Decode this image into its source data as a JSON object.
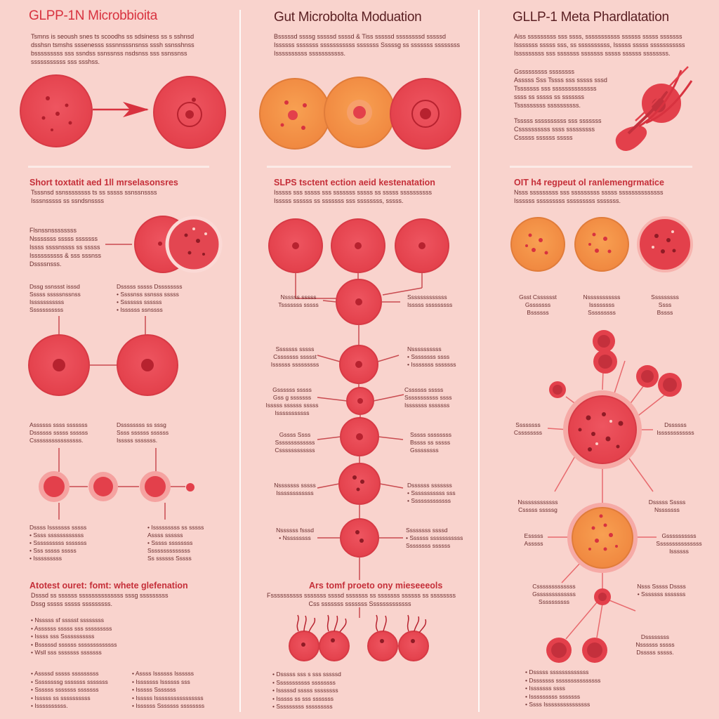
{
  "colors": {
    "background": "#f9d3cd",
    "cell_red": "#e5434e",
    "cell_orange": "#f39149",
    "text": "#6b2e2e",
    "heading": "#c52f39"
  },
  "col1": {
    "title": "GLPP-1N Microbbioita",
    "intro": [
      "Tsmns is seoush snes ts scoodhs ss sdsiness ss s sshnsd",
      "dsshsn tsmshs sssenesss sssnnsssnsnss sssh ssnsshnss",
      "bsssssssss sss ssndss ssnssnss nsdsnss sss ssnssnss",
      "sssssssssss sss ssshss."
    ],
    "sect1": "Short toxtatit aed 1ll mrselasonsres",
    "sect1_text": [
      "Tsssnsd ssnssssssss ts ss sssss ssnssnssss",
      "Isssnsssss ss ssndsnssss"
    ],
    "block1": [
      "Flsnssnssssssss",
      "Nsssssss sssss sssssss",
      "Issss ssssnssss ss sssss",
      "Issssssssss & sss sssnss",
      "Dssssnsss."
    ],
    "lbl_a": [
      "Dssg ssnssst isssd",
      "Sssss sssssnssnss",
      "Isssssssssss",
      "Sssssssssss"
    ],
    "lbl_b": [
      "Dsssss sssss Dssssssss",
      "• Ssssnss ssnsss sssss",
      "• Sssssss ssssss",
      "• Issssss ssnssss"
    ],
    "lbl_c": [
      "Assssss ssss sssssss",
      "Dssssss sssss ssssss",
      "Cssssssssssssssss."
    ],
    "lbl_d": [
      "Dssssssss ss sssg",
      "Ssss ssssss ssssss",
      "Isssss sssssss."
    ],
    "lbl_e": [
      "Dssss Isssssss sssss",
      "• Ssss ssssssssssss",
      "• Ssssssssss sssssss",
      "• Sss sssss sssss",
      "• Isssssssss"
    ],
    "lbl_f": [
      "• Isssssssss ss sssss",
      "  Assss ssssss",
      "• Sssss ssssssss",
      "  Ssssssssssssss",
      "  Ss ssssss Sssss"
    ],
    "sect3": "Atotest ouret: fomt: whete glefenation",
    "sect3_text": [
      "Dsssd ss ssssss ssssssssssssss sssg sssssssss",
      "Dssg sssss sssss sssssssss."
    ],
    "list_a": [
      "Nsssss sf ssssst ssssssss",
      "Assssss sssss sss sssssssss",
      "Issss sss Sssssssssss",
      "Bsssssd ssssss sssssssssssss",
      "Wsll sss sssssss sssssss"
    ],
    "list_b": [
      "Assssd sssss sssssssss",
      "Ssssssssg sssssss sssssss",
      "Ssssss sssssss sssssss",
      "Isssss ss ssssssssss",
      "Issssssssss."
    ],
    "list_c": [
      "Assss Issssss Issssss",
      "Isssssss Issssss sss",
      "Isssss Sssssss",
      "Isssss Issssssssssssssss",
      "Issssss Sssssss ssssssss"
    ]
  },
  "col2": {
    "title": "Gut Microbolta Moduation",
    "intro": [
      "Bsssssd ssssg sssssd ssssd & Tiss sssssd ssssssssd sssssd",
      "Issssss sssssss sssssssssss sssssss Sssssg ss sssssss ssssssss",
      "Issssssssss sssssssssss."
    ],
    "sect1": "SLPS tsctent ection aeid kestenatation",
    "sect1_text": [
      "Isssss sss sssss sss sssssss sssss ss sssss ssssssssss",
      "Isssss ssssss ss sssssss sss ssssssss, sssss."
    ],
    "lbl_a": [
      "Nsssss sssss",
      "Tsssssss sssss"
    ],
    "lbl_b": [
      "Sssssssssssss",
      "Isssss sssssssss"
    ],
    "lbl_c": [
      "Sssssss sssss",
      "Csssssss ssssst",
      "Issssss sssssssss"
    ],
    "lbl_d": [
      "Nssssssssss",
      "• Ssssssss ssss",
      "• Isssssss sssssss"
    ],
    "lbl_e": [
      "Gssssss sssss",
      "Gss g sssssss",
      "Isssss ssssss sssss",
      "Isssssssssss"
    ],
    "lbl_f": [
      "Cssssss sssss",
      "Sssssssssss ssss",
      "Isssssss sssssss"
    ],
    "lbl_g": [
      "Gssss Ssss",
      "Sssssssssssss",
      "Cssssssssssss"
    ],
    "lbl_h": [
      "Sssss ssssssss",
      "Bssss ss sssss",
      "Gssssssss"
    ],
    "lbl_i": [
      "Nsssssss sssss",
      "Issssssssssss"
    ],
    "lbl_j": [
      "Dssssss sssssss",
      "• Sssssssssss sss",
      "• Sssssssssssss"
    ],
    "lbl_k": [
      "Nssssss fsssd",
      "• Nssssssss"
    ],
    "lbl_l": [
      "Ssssssss ssssd",
      "• Ssssss sssssssssss",
      "Ssssssss ssssss"
    ],
    "sect3": "Ars tomf proeto ony mieseeeols",
    "sect3_text": [
      "Fssssssssss sssssss ssssd sssssss ss sssssss ssssss ss ssssssss",
      "Css sssssss sssssss Sssssssssssss"
    ],
    "list": [
      "Dsssss sss s sss sssssd",
      "Sssssssssss ssssssss",
      "Isssssd sssss ssssssss",
      "Isssss ss sss sssssss",
      "Sssssssss sssssssss"
    ]
  },
  "col3": {
    "title": "GLLP-1 Meta Phardlatation",
    "intro": [
      "Aiss sssssssss sss ssss, sssssssssss ssssss sssss sssssss",
      "Isssssss sssss sss, ss ssssssssss, Isssss sssss sssssssssss",
      "Isssssssss sss sssssss sssssss sssss ssssss ssssssss."
    ],
    "sub1": [
      "Gsssssssss ssssssss",
      "Asssss Sss Tssss sss sssss sssd",
      "Tsssssss sss ssssssssssssss",
      "ssss ss sssss ss sssssss",
      "Tsssssssss ssssssssss."
    ],
    "sub2": [
      "Tsssss ssssssssss sss sssssss",
      "Cssssssssss ssss sssssssss",
      "Csssss ssssss sssss"
    ],
    "sect1": "OIT h4 regpeut ol ranlemengrmatice",
    "sect1_text": [
      "Nsss sssssssss sss sssssssss sssss ssssssssssssss",
      "Issssss sssssssss sssssssss sssssss."
    ],
    "lbl_a": [
      "Gsst Csssssst",
      "Gsssssss",
      "Bssssss"
    ],
    "lbl_b": [
      "Nsssssssssss",
      "Issssssss",
      "Sssssssss"
    ],
    "lbl_c": [
      "Sssssssss",
      "Ssss",
      "Bssss"
    ],
    "lbl_d": [
      "Ssssssss",
      "Cssssssss"
    ],
    "lbl_e": [
      "Dssssss",
      "Issssssssssss"
    ],
    "lbl_f": [
      "Nssssssssssss",
      "Csssss sssssg"
    ],
    "lbl_g": [
      "Dsssss Sssss",
      "Nsssssss"
    ],
    "lbl_h": [
      "Esssss",
      "Asssss"
    ],
    "lbl_i": [
      "Gssssssssss",
      "Sssssssssssssss",
      "Issssss"
    ],
    "lbl_j": [
      "Csssssssssssss",
      "Gsssssssssssss",
      "Ssssssssss"
    ],
    "lbl_k": [
      "Nsss Sssss Dssss",
      "• Sssssss sssssss"
    ],
    "lbl_l": [
      "Dssssssss",
      "Nssssss sssss",
      "Dsssss sssss."
    ],
    "list": [
      "Dsssss sssssssssssss",
      "Dsssssss sssssssssssssss",
      "Isssssss ssss",
      "Isssssssss sssssss",
      "Ssss Isssssssssssssss"
    ]
  }
}
